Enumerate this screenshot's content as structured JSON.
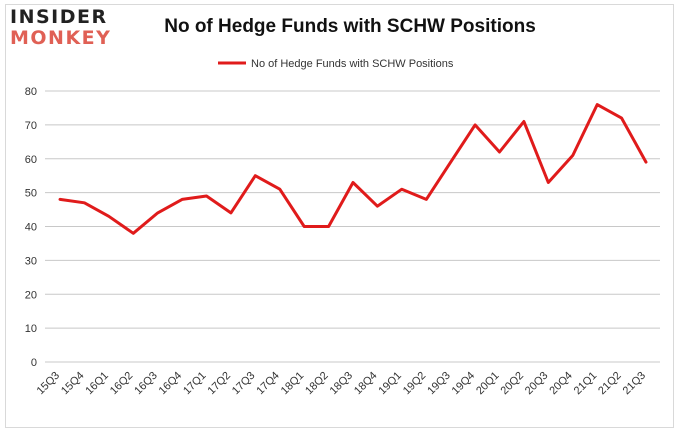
{
  "brand": {
    "logo_top": "INSIDER",
    "logo_bottom": "MONKEY"
  },
  "colors": {
    "series": "#e01b1b",
    "grid": "#c8c8c8",
    "logo_accent": "#e06055"
  },
  "chart_data": {
    "type": "line",
    "title": "No of Hedge Funds with SCHW Positions",
    "xlabel": "",
    "ylabel": "",
    "categories": [
      "15Q3",
      "15Q4",
      "16Q1",
      "16Q2",
      "16Q3",
      "16Q4",
      "17Q1",
      "17Q2",
      "17Q3",
      "17Q4",
      "18Q1",
      "18Q2",
      "18Q3",
      "18Q4",
      "19Q1",
      "19Q2",
      "19Q3",
      "19Q4",
      "20Q1",
      "20Q2",
      "20Q3",
      "20Q4",
      "21Q1",
      "21Q2",
      "21Q3"
    ],
    "series": [
      {
        "name": "No of Hedge Funds with SCHW Positions",
        "values": [
          48,
          47,
          43,
          38,
          44,
          48,
          49,
          44,
          55,
          51,
          40,
          40,
          53,
          46,
          51,
          48,
          59,
          70,
          62,
          71,
          53,
          61,
          76,
          72,
          59
        ]
      }
    ],
    "ylim": [
      0,
      80
    ],
    "yticks": [
      0,
      10,
      20,
      30,
      40,
      50,
      60,
      70,
      80
    ],
    "grid": true,
    "legend_position": "top-center"
  }
}
